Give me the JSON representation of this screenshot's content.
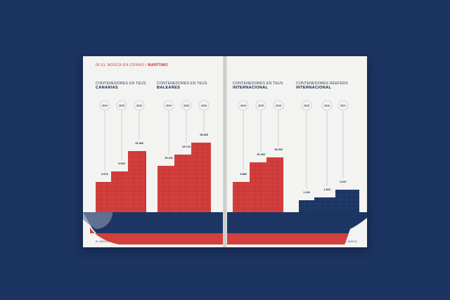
{
  "header": {
    "section": "06 EL MOSCA EN CIFRAS",
    "separator": "/",
    "current": "MARÍTIMO"
  },
  "footers": {
    "left": "EL MOSCA",
    "right": "EL MOSCA"
  },
  "colors": {
    "background": "#1c3461",
    "red": "#d23f3d",
    "navy": "#1d3563",
    "paper": "#f3f3f1"
  },
  "chart_data": [
    {
      "type": "bar",
      "title_line1": "CONTENEDORES EN TEUS",
      "title_line2": "CANARIAS",
      "categories": [
        "2014",
        "2015",
        "2016"
      ],
      "values": [
        6676,
        9009,
        13466
      ],
      "value_labels": [
        "6.676",
        "9.009",
        "13.466"
      ],
      "color": "#d23f3d"
    },
    {
      "type": "bar",
      "title_line1": "CONTENEDORES EN TEUS",
      "title_line2": "BALEARES",
      "categories": [
        "2014",
        "2015",
        "2016"
      ],
      "values": [
        19101,
        23724,
        28845
      ],
      "value_labels": [
        "19.101",
        "23.724",
        "28.845"
      ],
      "color": "#d23f3d"
    },
    {
      "type": "bar",
      "title_line1": "CONTENEDORES EN TEUS",
      "title_line2": "INTERNACIONAL",
      "categories": [
        "2014",
        "2015",
        "2016"
      ],
      "values": [
        9883,
        16400,
        18000
      ],
      "value_labels": [
        "9.883",
        "16.400",
        "18.000"
      ],
      "color": "#d23f3d"
    },
    {
      "type": "bar",
      "title_line1": "CONTENEDORES REEFERS",
      "title_line2": "INTERNACIONAL",
      "categories": [
        "2015",
        "2016",
        "2017"
      ],
      "values": [
        1130,
        1363,
        2047
      ],
      "value_labels": [
        "1.130",
        "1.363",
        "2.047"
      ],
      "color": "#1d3563"
    }
  ]
}
